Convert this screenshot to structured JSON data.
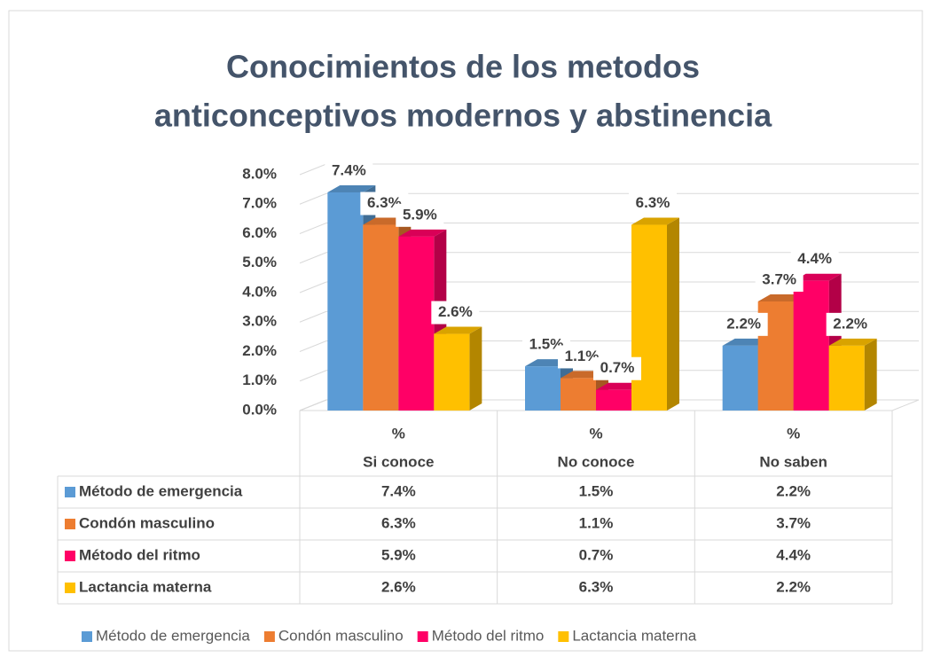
{
  "chart_data": {
    "type": "bar3d",
    "title": [
      "Conocimientos de los metodos",
      "anticonceptivos modernos y abstinencia"
    ],
    "categories": [
      [
        "%",
        "Si conoce"
      ],
      [
        "%",
        "No conoce"
      ],
      [
        "%",
        "No saben"
      ]
    ],
    "series": [
      {
        "name": "Método de emergencia",
        "color": "#5b9bd5",
        "values": [
          7.4,
          1.5,
          2.2
        ],
        "value_labels": [
          "7.4%",
          "1.5%",
          "2.2%"
        ]
      },
      {
        "name": "Condón masculino",
        "color": "#ed7d31",
        "values": [
          6.3,
          1.1,
          3.7
        ],
        "value_labels": [
          "6.3%",
          "1.1%",
          "3.7%"
        ]
      },
      {
        "name": "Método del ritmo",
        "color": "#ff0066",
        "values": [
          5.9,
          0.7,
          4.4
        ],
        "value_labels": [
          "5.9%",
          "0.7%",
          "4.4%"
        ]
      },
      {
        "name": "Lactancia materna",
        "color": "#ffc000",
        "values": [
          2.6,
          6.3,
          2.2
        ],
        "value_labels": [
          "2.6%",
          "6.3%",
          "2.2%"
        ]
      }
    ],
    "ylim": [
      0,
      8
    ],
    "yticks": [
      {
        "value": 0,
        "label": "0.0%"
      },
      {
        "value": 1,
        "label": "1.0%"
      },
      {
        "value": 2,
        "label": "2.0%"
      },
      {
        "value": 3,
        "label": "3.0%"
      },
      {
        "value": 4,
        "label": "4.0%"
      },
      {
        "value": 5,
        "label": "5.0%"
      },
      {
        "value": 6,
        "label": "6.0%"
      },
      {
        "value": 7,
        "label": "7.0%"
      },
      {
        "value": 8,
        "label": "8.0%"
      }
    ],
    "grid": true,
    "legend": "bottom"
  }
}
